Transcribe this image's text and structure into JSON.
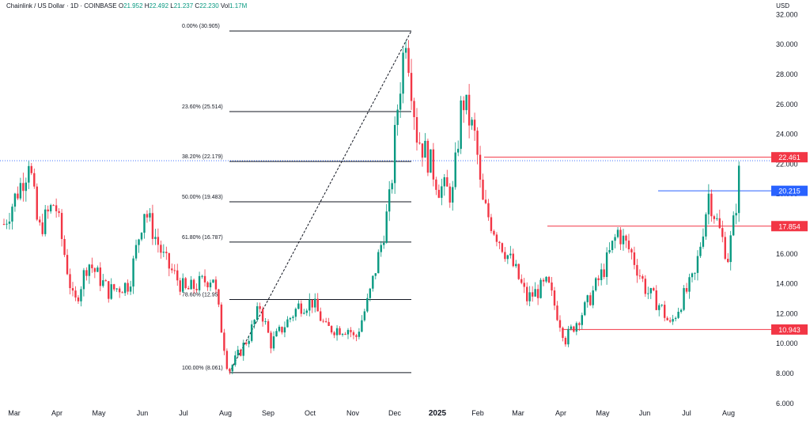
{
  "header": {
    "symbol": "Chainlink / US Dollar · 1D · COINBASE",
    "o_label": "O",
    "o_val": "21.952",
    "h_label": "H",
    "h_val": "22.492",
    "l_label": "L",
    "l_val": "21.237",
    "c_label": "C",
    "c_val": "22.230",
    "vol_label": "Vol",
    "vol_val": "1.17M",
    "currency": "USD"
  },
  "colors": {
    "up": "#089981",
    "down": "#f23645",
    "line": "#131722",
    "red_line": "#f23645",
    "blue_label": "#2962ff"
  },
  "chart_data": {
    "type": "candlestick",
    "title": "Chainlink / US Dollar · 1D · COINBASE",
    "ylim": [
      6,
      32
    ],
    "y_ticks": [
      "32.000",
      "30.000",
      "28.000",
      "26.000",
      "24.000",
      "22.000",
      "20.000",
      "18.000",
      "16.000",
      "14.000",
      "12.000",
      "10.000",
      "8.000",
      "6.000"
    ],
    "x_ticks": [
      "Mar",
      "Apr",
      "May",
      "Jun",
      "Jul",
      "Aug",
      "Sep",
      "Oct",
      "Nov",
      "Dec",
      "2025",
      "Feb",
      "Mar",
      "Apr",
      "May",
      "Jun",
      "Jul",
      "Aug"
    ],
    "current_price": 22.23,
    "fibonacci": [
      {
        "label": "0.00% (30.905)",
        "value": 30.905
      },
      {
        "label": "23.60% (25.514)",
        "value": 25.514
      },
      {
        "label": "38.20% (22.179)",
        "value": 22.179
      },
      {
        "label": "50.00% (19.483)",
        "value": 19.483
      },
      {
        "label": "61.80% (16.787)",
        "value": 16.787
      },
      {
        "label": "78.60% (12.95)",
        "value": 12.95
      },
      {
        "label": "100.00% (8.061)",
        "value": 8.061
      }
    ],
    "levels": [
      {
        "label": "22.461",
        "value": 22.461,
        "color": "#f23645"
      },
      {
        "label": "20.215",
        "value": 20.215,
        "color": "#2962ff"
      },
      {
        "label": "17.854",
        "value": 17.854,
        "color": "#f23645"
      },
      {
        "label": "10.943",
        "value": 10.943,
        "color": "#f23645"
      }
    ],
    "price_path": [
      {
        "date": "2024-02-24",
        "close": 18.0
      },
      {
        "date": "2024-03-11",
        "close": 21.5
      },
      {
        "date": "2024-03-13",
        "close": 22.5
      },
      {
        "date": "2024-03-20",
        "close": 17.5
      },
      {
        "date": "2024-04-01",
        "close": 19.5
      },
      {
        "date": "2024-04-15",
        "close": 12.5
      },
      {
        "date": "2024-04-25",
        "close": 15.5
      },
      {
        "date": "2024-05-10",
        "close": 13.5
      },
      {
        "date": "2024-05-25",
        "close": 14.0
      },
      {
        "date": "2024-06-05",
        "close": 19.0
      },
      {
        "date": "2024-06-20",
        "close": 15.5
      },
      {
        "date": "2024-07-05",
        "close": 13.5
      },
      {
        "date": "2024-07-25",
        "close": 14.5
      },
      {
        "date": "2024-08-05",
        "close": 8.1
      },
      {
        "date": "2024-08-20",
        "close": 10.5
      },
      {
        "date": "2024-08-28",
        "close": 12.5
      },
      {
        "date": "2024-09-05",
        "close": 10.0
      },
      {
        "date": "2024-09-25",
        "close": 12.5
      },
      {
        "date": "2024-10-05",
        "close": 12.8
      },
      {
        "date": "2024-10-15",
        "close": 11.0
      },
      {
        "date": "2024-11-01",
        "close": 11.0
      },
      {
        "date": "2024-11-05",
        "close": 10.2
      },
      {
        "date": "2024-11-15",
        "close": 13.0
      },
      {
        "date": "2024-11-25",
        "close": 17.0
      },
      {
        "date": "2024-12-01",
        "close": 20.0
      },
      {
        "date": "2024-12-05",
        "close": 25.0
      },
      {
        "date": "2024-12-12",
        "close": 30.9
      },
      {
        "date": "2024-12-20",
        "close": 24.0
      },
      {
        "date": "2024-12-30",
        "close": 22.0
      },
      {
        "date": "2025-01-05",
        "close": 20.5
      },
      {
        "date": "2025-01-15",
        "close": 20.0
      },
      {
        "date": "2025-01-22",
        "close": 26.5
      },
      {
        "date": "2025-02-01",
        "close": 23.5
      },
      {
        "date": "2025-02-05",
        "close": 19.5
      },
      {
        "date": "2025-02-15",
        "close": 17.5
      },
      {
        "date": "2025-03-01",
        "close": 15.0
      },
      {
        "date": "2025-03-10",
        "close": 13.0
      },
      {
        "date": "2025-03-25",
        "close": 14.0
      },
      {
        "date": "2025-04-07",
        "close": 10.3
      },
      {
        "date": "2025-04-22",
        "close": 12.5
      },
      {
        "date": "2025-05-05",
        "close": 15.0
      },
      {
        "date": "2025-05-15",
        "close": 17.5
      },
      {
        "date": "2025-05-25",
        "close": 16.0
      },
      {
        "date": "2025-06-05",
        "close": 13.5
      },
      {
        "date": "2025-06-15",
        "close": 12.5
      },
      {
        "date": "2025-06-22",
        "close": 11.2
      },
      {
        "date": "2025-07-01",
        "close": 13.0
      },
      {
        "date": "2025-07-10",
        "close": 14.5
      },
      {
        "date": "2025-07-20",
        "close": 20.0
      },
      {
        "date": "2025-07-28",
        "close": 17.5
      },
      {
        "date": "2025-08-03",
        "close": 15.8
      },
      {
        "date": "2025-08-08",
        "close": 18.5
      },
      {
        "date": "2025-08-12",
        "close": 22.2
      }
    ]
  }
}
